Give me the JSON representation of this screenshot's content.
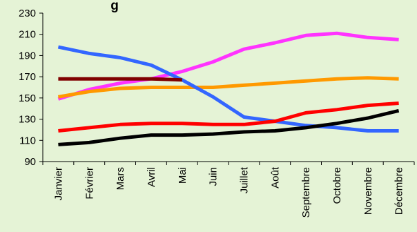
{
  "chart_data": {
    "type": "line",
    "title": "g",
    "xlabel": "",
    "ylabel": "",
    "categories": [
      "Janvier",
      "Février",
      "Mars",
      "Avril",
      "Mai",
      "Juin",
      "Juillet",
      "Août",
      "Septembre",
      "Octobre",
      "Novembre",
      "Décembre"
    ],
    "ylim": [
      90,
      230
    ],
    "yticks": [
      90,
      110,
      130,
      150,
      170,
      190,
      210,
      230
    ],
    "grid": false,
    "series": [
      {
        "color": "#ff33ff",
        "values": [
          149,
          158,
          164,
          168,
          175,
          184,
          196,
          202,
          209,
          211,
          207,
          205
        ]
      },
      {
        "color": "#ff9900",
        "values": [
          151,
          156,
          159,
          160,
          160,
          160,
          162,
          164,
          166,
          168,
          169,
          168
        ]
      },
      {
        "color": "#3366ff",
        "values": [
          198,
          192,
          188,
          181,
          167,
          151,
          132,
          128,
          124,
          122,
          119,
          119
        ]
      },
      {
        "color": "#ff0000",
        "values": [
          119,
          122,
          125,
          126,
          126,
          125,
          125,
          128,
          136,
          139,
          143,
          145
        ]
      },
      {
        "color": "#000000",
        "values": [
          106,
          108,
          112,
          115,
          115,
          116,
          118,
          119,
          122,
          126,
          131,
          138
        ]
      },
      {
        "color": "#800000",
        "values": [
          168,
          168,
          168,
          168,
          167,
          null,
          null,
          null,
          null,
          null,
          null,
          null
        ]
      }
    ]
  }
}
